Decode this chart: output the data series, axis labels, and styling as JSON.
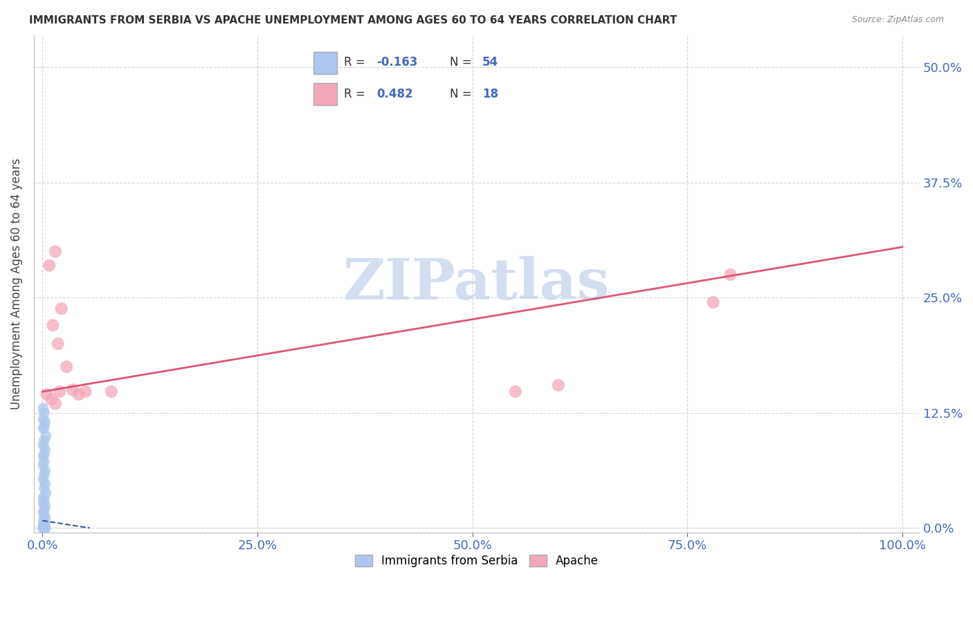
{
  "title": "IMMIGRANTS FROM SERBIA VS APACHE UNEMPLOYMENT AMONG AGES 60 TO 64 YEARS CORRELATION CHART",
  "source": "Source: ZipAtlas.com",
  "ylabel": "Unemployment Among Ages 60 to 64 years",
  "legend_serbia_label": "Immigrants from Serbia",
  "legend_apache_label": "Apache",
  "serbia_R": -0.163,
  "serbia_N": 54,
  "apache_R": 0.482,
  "apache_N": 18,
  "serbia_color": "#aec6ef",
  "apache_color": "#f4a7b9",
  "serbia_line_color": "#3a5aa0",
  "apache_line_color": "#e05575",
  "watermark_text": "ZIPatlas",
  "watermark_color": "#ccd9ee",
  "xlabel_tick_vals": [
    0.0,
    0.25,
    0.5,
    0.75,
    1.0
  ],
  "ylabel_tick_vals": [
    0.0,
    0.125,
    0.25,
    0.375,
    0.5
  ],
  "xlim": [
    -0.01,
    1.02
  ],
  "ylim": [
    -0.005,
    0.535
  ],
  "serbia_x": [
    0.001,
    0.002,
    0.001,
    0.003,
    0.002,
    0.001,
    0.004,
    0.002,
    0.001,
    0.003,
    0.002,
    0.001,
    0.002,
    0.001,
    0.003,
    0.002,
    0.001,
    0.003,
    0.002,
    0.004,
    0.001,
    0.002,
    0.001,
    0.003,
    0.002,
    0.001,
    0.002,
    0.003,
    0.001,
    0.002,
    0.003,
    0.001,
    0.002,
    0.001,
    0.003,
    0.002,
    0.001,
    0.002,
    0.003,
    0.001,
    0.002,
    0.001,
    0.003,
    0.002,
    0.001,
    0.002,
    0.003,
    0.001,
    0.002,
    0.001,
    0.003,
    0.002,
    0.001,
    0.002
  ],
  "serbia_y": [
    0.13,
    0.125,
    0.118,
    0.115,
    0.11,
    0.108,
    0.1,
    0.095,
    0.09,
    0.085,
    0.08,
    0.078,
    0.072,
    0.068,
    0.062,
    0.058,
    0.053,
    0.048,
    0.043,
    0.038,
    0.033,
    0.03,
    0.027,
    0.024,
    0.02,
    0.017,
    0.014,
    0.011,
    0.008,
    0.006,
    0.004,
    0.003,
    0.002,
    0.001,
    0.0,
    0.0,
    0.0,
    0.0,
    0.0,
    0.0,
    0.0,
    0.0,
    0.0,
    0.0,
    0.0,
    0.0,
    0.0,
    0.0,
    0.0,
    0.0,
    0.0,
    0.0,
    0.0,
    0.0
  ],
  "apache_x": [
    0.005,
    0.008,
    0.012,
    0.015,
    0.018,
    0.022,
    0.028,
    0.035,
    0.042,
    0.01,
    0.015,
    0.02,
    0.05,
    0.08,
    0.55,
    0.78,
    0.6,
    0.8
  ],
  "apache_y": [
    0.145,
    0.285,
    0.22,
    0.3,
    0.2,
    0.238,
    0.175,
    0.15,
    0.145,
    0.14,
    0.135,
    0.148,
    0.148,
    0.148,
    0.148,
    0.245,
    0.155,
    0.275
  ],
  "apache_line_x0": 0.0,
  "apache_line_x1": 1.0,
  "apache_line_y0": 0.148,
  "apache_line_y1": 0.305,
  "serbia_line_x0": 0.0,
  "serbia_line_x1": 0.055,
  "serbia_line_y0": 0.008,
  "serbia_line_y1": 0.0
}
